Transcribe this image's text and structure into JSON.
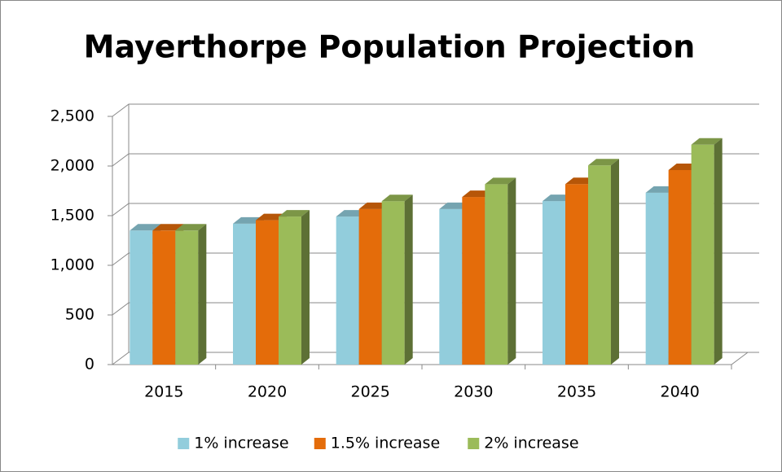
{
  "chart_data": {
    "type": "bar3d",
    "title": "Mayerthorpe Population Projection",
    "categories": [
      "2015",
      "2020",
      "2025",
      "2030",
      "2035",
      "2040"
    ],
    "series": [
      {
        "name": "1% increase",
        "color": "#92cddc",
        "values": [
          1350,
          1419,
          1491,
          1567,
          1647,
          1731
        ]
      },
      {
        "name": "1.5% increase",
        "color": "#e46c0a",
        "values": [
          1350,
          1454,
          1567,
          1688,
          1818,
          1959
        ]
      },
      {
        "name": "2% increase",
        "color": "#9bbb59",
        "values": [
          1350,
          1491,
          1646,
          1817,
          2006,
          2215
        ]
      }
    ],
    "ylim": [
      0,
      2500
    ],
    "yticks": [
      0,
      500,
      {
        "value": 1000,
        "label": "1,000"
      },
      {
        "value": 1500,
        "label": "1,500"
      },
      {
        "value": 2000,
        "label": "2,000"
      },
      {
        "value": 2500,
        "label": "2,500"
      }
    ],
    "grid": true,
    "legend": "bottom"
  }
}
